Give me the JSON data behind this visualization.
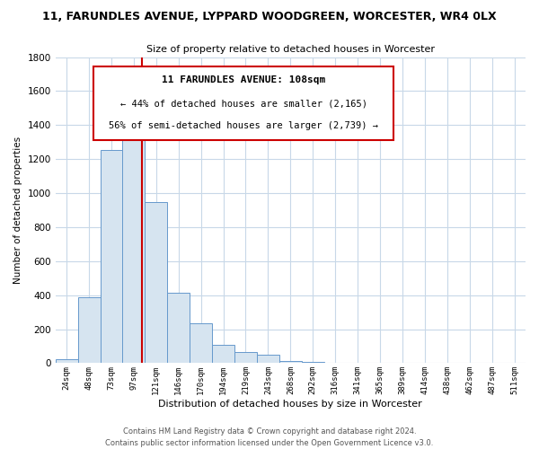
{
  "title_line1": "11, FARUNDLES AVENUE, LYPPARD WOODGREEN, WORCESTER, WR4 0LX",
  "title_line2": "Size of property relative to detached houses in Worcester",
  "xlabel": "Distribution of detached houses by size in Worcester",
  "ylabel": "Number of detached properties",
  "categories": [
    "24sqm",
    "48sqm",
    "73sqm",
    "97sqm",
    "121sqm",
    "146sqm",
    "170sqm",
    "194sqm",
    "219sqm",
    "243sqm",
    "268sqm",
    "292sqm",
    "316sqm",
    "341sqm",
    "365sqm",
    "389sqm",
    "414sqm",
    "438sqm",
    "462sqm",
    "487sqm",
    "511sqm"
  ],
  "values": [
    25,
    390,
    1255,
    1400,
    950,
    415,
    235,
    110,
    65,
    48,
    15,
    5,
    2,
    1,
    0,
    0,
    0,
    0,
    0,
    0,
    0
  ],
  "bar_color": "#d6e4f0",
  "bar_edge_color": "#6699cc",
  "vline_x_index": 3,
  "vline_color": "#cc0000",
  "ylim": [
    0,
    1800
  ],
  "yticks": [
    0,
    200,
    400,
    600,
    800,
    1000,
    1200,
    1400,
    1600,
    1800
  ],
  "annotation_title": "11 FARUNDLES AVENUE: 108sqm",
  "annotation_line2": "← 44% of detached houses are smaller (2,165)",
  "annotation_line3": "56% of semi-detached houses are larger (2,739) →",
  "annotation_box_edge": "#cc0000",
  "footer_line1": "Contains HM Land Registry data © Crown copyright and database right 2024.",
  "footer_line2": "Contains public sector information licensed under the Open Government Licence v3.0.",
  "background_color": "#ffffff",
  "grid_color": "#c8d8e8"
}
